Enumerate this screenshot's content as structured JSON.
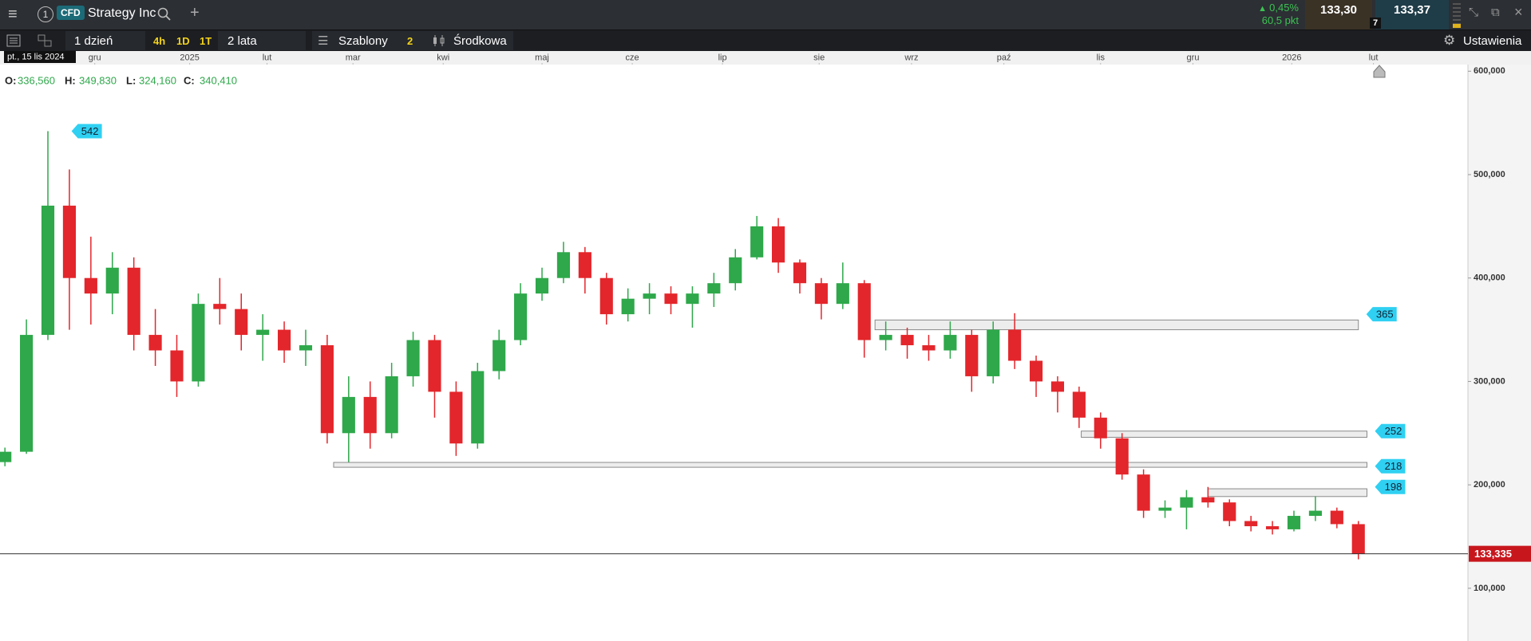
{
  "header": {
    "tab_number": 1,
    "instrument_type": "CFD",
    "instrument": "Strategy Inc",
    "change_pct": "0,45%",
    "change_pts": "60,5 pkt",
    "sell": "133,30",
    "buy": "133,37",
    "spread_badge": 7
  },
  "toolbar": {
    "interval": "1 dzień",
    "presets": [
      "4h",
      "1D",
      "1T"
    ],
    "range": "2 lata",
    "templates": "Szablony",
    "templates_count": 2,
    "chart_style": "Środkowa",
    "settings": "Ustawienia"
  },
  "chart_data": {
    "type": "candlestick",
    "date_label": "pt., 15 lis 2024",
    "info": [
      {
        "name": "O:",
        "label": "336,560"
      },
      {
        "name": "H:",
        "label": "349,830"
      },
      {
        "name": "L:",
        "label": "324,160"
      },
      {
        "name": "C:",
        "label": "340,410"
      }
    ],
    "open": [
      222,
      232,
      345,
      470,
      400,
      385,
      410,
      345,
      330,
      300,
      375,
      370,
      345,
      350,
      330,
      335,
      250,
      285,
      250,
      305,
      340,
      290,
      240,
      310,
      340,
      385,
      400,
      425,
      400,
      365,
      380,
      385,
      375,
      385,
      395,
      420,
      450,
      415,
      395,
      375,
      395,
      340,
      345,
      335,
      330,
      345,
      305,
      350,
      320,
      300,
      290,
      265,
      245,
      210,
      175,
      178,
      188,
      183,
      165,
      160,
      157,
      170,
      175,
      162
    ],
    "high": [
      236,
      360,
      542,
      505,
      440,
      425,
      420,
      370,
      345,
      385,
      400,
      385,
      365,
      358,
      350,
      345,
      305,
      300,
      318,
      348,
      345,
      300,
      318,
      350,
      395,
      410,
      435,
      430,
      405,
      390,
      395,
      392,
      392,
      405,
      428,
      460,
      458,
      418,
      400,
      415,
      398,
      358,
      352,
      345,
      358,
      350,
      358,
      366,
      325,
      305,
      295,
      270,
      250,
      215,
      185,
      195,
      198,
      186,
      170,
      165,
      175,
      189,
      178,
      165
    ],
    "low": [
      218,
      230,
      340,
      350,
      355,
      365,
      330,
      315,
      285,
      295,
      355,
      330,
      320,
      318,
      315,
      240,
      222,
      235,
      245,
      295,
      265,
      228,
      235,
      302,
      335,
      378,
      395,
      385,
      355,
      358,
      365,
      365,
      352,
      372,
      388,
      418,
      405,
      385,
      360,
      370,
      323,
      330,
      322,
      320,
      322,
      290,
      298,
      312,
      285,
      270,
      255,
      235,
      205,
      168,
      168,
      157,
      178,
      160,
      155,
      152,
      155,
      165,
      158,
      128
    ],
    "close": [
      232,
      345,
      470,
      400,
      385,
      410,
      345,
      330,
      300,
      375,
      370,
      345,
      350,
      330,
      335,
      250,
      285,
      250,
      305,
      340,
      290,
      240,
      310,
      340,
      385,
      400,
      425,
      400,
      365,
      380,
      385,
      375,
      385,
      395,
      420,
      450,
      415,
      395,
      375,
      395,
      340,
      345,
      335,
      330,
      345,
      305,
      350,
      320,
      300,
      290,
      265,
      245,
      210,
      175,
      178,
      188,
      183,
      165,
      160,
      157,
      170,
      175,
      162,
      133.335
    ],
    "up_color": "#2ea84a",
    "down_color": "#e3262b",
    "xlim": [
      -0.23,
      68.1
    ],
    "xticks": [
      {
        "value": 4.18,
        "label": "gru"
      },
      {
        "value": 8.6,
        "label": "2025"
      },
      {
        "value": 12.2,
        "label": "lut"
      },
      {
        "value": 16.2,
        "label": "mar"
      },
      {
        "value": 20.4,
        "label": "kwi"
      },
      {
        "value": 25,
        "label": "maj"
      },
      {
        "value": 29.2,
        "label": "cze"
      },
      {
        "value": 33.4,
        "label": "lip"
      },
      {
        "value": 37.9,
        "label": "sie"
      },
      {
        "value": 42.2,
        "label": "wrz"
      },
      {
        "value": 46.5,
        "label": "paź"
      },
      {
        "value": 51,
        "label": "lis"
      },
      {
        "value": 55.3,
        "label": "gru"
      },
      {
        "value": 59.9,
        "label": "2026"
      },
      {
        "value": 63.7,
        "label": "lut"
      }
    ],
    "ylim": [
      49,
      606.4
    ],
    "yticks": [
      {
        "value": 600,
        "label": "600,000"
      },
      {
        "value": 500,
        "label": "500,000"
      },
      {
        "value": 400,
        "label": "400,000"
      },
      {
        "value": 300,
        "label": "300,000"
      },
      {
        "value": 200,
        "label": "200,000"
      },
      {
        "value": 100,
        "label": "100,000"
      }
    ],
    "grid": false,
    "levels": [
      {
        "value": 365,
        "low": 350,
        "high": 359.4,
        "start": 40.5,
        "end": 63
      },
      {
        "value": 252,
        "low": 246,
        "high": 252,
        "start": 50.1,
        "end": 63.4
      },
      {
        "value": 218,
        "low": 217,
        "high": 221.7,
        "start": 15.3,
        "end": 63.4
      },
      {
        "value": 198,
        "low": 188.7,
        "high": 196.2,
        "start": 56,
        "end": 63.4
      }
    ],
    "annotations": [
      {
        "value": 542,
        "x": 3.1
      }
    ],
    "last": {
      "value": 133.335,
      "label": "133,335"
    },
    "last_color": "#c8161d"
  }
}
